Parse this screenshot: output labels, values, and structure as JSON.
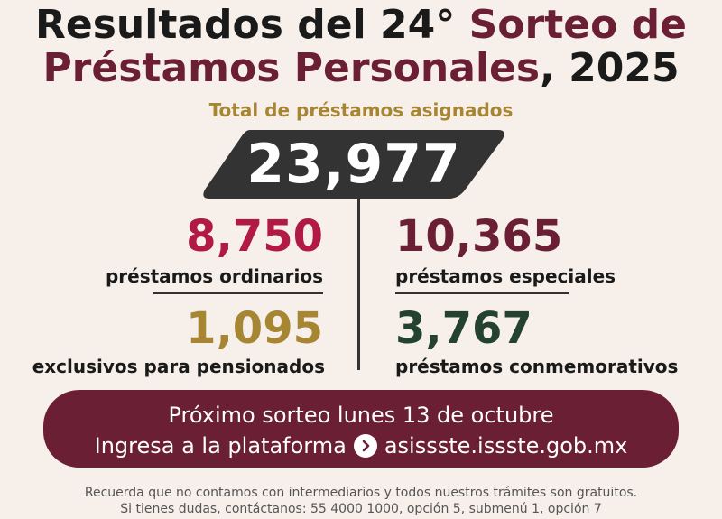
{
  "title": {
    "line1_main": "Resultados del 24° ",
    "line1_accent": "Sorteo de",
    "line2_accent": "Préstamos  Personales",
    "line2_main": ", 2025"
  },
  "subtitle": "Total de préstamos asignados",
  "total": "23,977",
  "stats": {
    "ordinary": {
      "value": "8,750",
      "label": "préstamos ordinarios"
    },
    "special": {
      "value": "10,365",
      "label": "préstamos especiales"
    },
    "pension": {
      "value": "1,095",
      "label": "exclusivos para pensionados"
    },
    "commemorative": {
      "value": "3,767",
      "label": "préstamos conmemorativos"
    }
  },
  "banner": {
    "line1": "Próximo sorteo lunes 13 de octubre",
    "line2_prefix": "Ingresa a la plataforma",
    "line2_link": "asissste.issste.gob.mx"
  },
  "footer": {
    "line1": "Recuerda que no contamos con intermediarios y todos nuestros trámites son gratuitos.",
    "line2": "Si tienes dudas, contáctanos: 55 4000 1000,  opción 5, submenú 1, opción 7"
  },
  "colors": {
    "background": "#f7f0ea",
    "maroon": "#6b1f35",
    "crimson": "#b11a45",
    "gold": "#a68533",
    "green": "#23432f",
    "dark": "#333333"
  }
}
